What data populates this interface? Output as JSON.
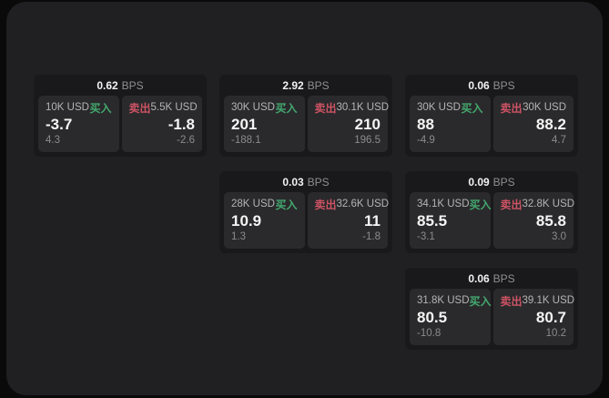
{
  "labels": {
    "bps_unit": "BPS",
    "buy": "买入",
    "sell": "卖出"
  },
  "colors": {
    "buy_green": "#43a86e",
    "sell_red": "#cd5364",
    "panel_bg": "#2a2a2c",
    "card_bg": "#19191b",
    "screen_bg": "#202022"
  },
  "cards": [
    {
      "col": 1,
      "row": 1,
      "bps": "0.62",
      "buy": {
        "amount": "10K USD",
        "price": "-3.7",
        "delta": "4.3"
      },
      "sell": {
        "amount": "5.5K USD",
        "price": "-1.8",
        "delta": "-2.6"
      }
    },
    {
      "col": 2,
      "row": 1,
      "bps": "2.92",
      "buy": {
        "amount": "30K USD",
        "price": "201",
        "delta": "-188.1"
      },
      "sell": {
        "amount": "30.1K USD",
        "price": "210",
        "delta": "196.5"
      }
    },
    {
      "col": 3,
      "row": 1,
      "bps": "0.06",
      "buy": {
        "amount": "30K USD",
        "price": "88",
        "delta": "-4.9"
      },
      "sell": {
        "amount": "30K USD",
        "price": "88.2",
        "delta": "4.7"
      }
    },
    {
      "col": 2,
      "row": 2,
      "bps": "0.03",
      "buy": {
        "amount": "28K USD",
        "price": "10.9",
        "delta": "1.3"
      },
      "sell": {
        "amount": "32.6K USD",
        "price": "11",
        "delta": "-1.8"
      }
    },
    {
      "col": 3,
      "row": 2,
      "bps": "0.09",
      "buy": {
        "amount": "34.1K USD",
        "price": "85.5",
        "delta": "-3.1"
      },
      "sell": {
        "amount": "32.8K USD",
        "price": "85.8",
        "delta": "3.0"
      }
    },
    {
      "col": 3,
      "row": 3,
      "bps": "0.06",
      "buy": {
        "amount": "31.8K USD",
        "price": "80.5",
        "delta": "-10.8"
      },
      "sell": {
        "amount": "39.1K USD",
        "price": "80.7",
        "delta": "10.2"
      }
    }
  ]
}
